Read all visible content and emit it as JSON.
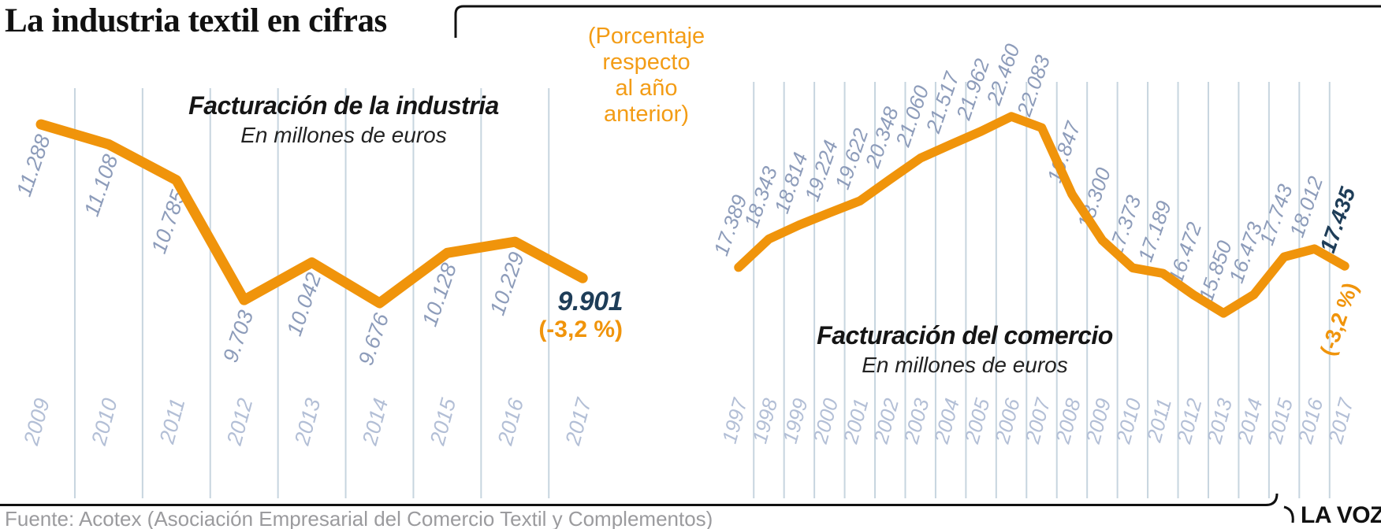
{
  "header": {
    "title": "La industria textil en cifras",
    "note": "(Porcentaje\nrespecto\nal año\nanterior)"
  },
  "footer": {
    "source": "Fuente: Acotex (Asociación Empresarial del Comercio Textil y Complementos)",
    "brand": "LA VOZ"
  },
  "colors": {
    "orange_line": "#F0940B",
    "orange_text": "#F39C15",
    "value_label_blue": "#8D9CBA",
    "year_label_blue": "#B3BFD6",
    "gridline": "#C7D5DF",
    "navy": "#1E3D58",
    "source_gray": "#9B9B9E",
    "ink": "#111111"
  },
  "chart_data": [
    {
      "type": "line",
      "title": "Facturación de la industria",
      "subtitle": "En millones de euros",
      "categories": [
        "2009",
        "2010",
        "2011",
        "2012",
        "2013",
        "2014",
        "2015",
        "2016",
        "2017"
      ],
      "values": [
        11288,
        11108,
        10785,
        9703,
        10042,
        9676,
        10128,
        10229,
        9901
      ],
      "value_labels": [
        "11.288",
        "11.108",
        "10.785",
        "9.703",
        "10.042",
        "9.676",
        "10.128",
        "10.229"
      ],
      "final_label": "9.901",
      "final_pct": "(-3,2 %)",
      "xlabel": "",
      "ylabel": "",
      "grid": "vertical-only",
      "legend": "none"
    },
    {
      "type": "line",
      "title": "Facturación del comercio",
      "subtitle": "En millones de euros",
      "categories": [
        "1997",
        "1998",
        "1999",
        "2000",
        "2001",
        "2002",
        "2003",
        "2004",
        "2005",
        "2006",
        "2007",
        "2008",
        "2009",
        "2010",
        "2011",
        "2012",
        "2013",
        "2014",
        "2015",
        "2016",
        "2017"
      ],
      "values": [
        17389,
        18343,
        18814,
        19224,
        19622,
        20348,
        21060,
        21517,
        21962,
        22460,
        22083,
        19847,
        18300,
        17373,
        17189,
        16472,
        15850,
        16473,
        17743,
        18012,
        17435
      ],
      "value_labels": [
        "17.389",
        "18.343",
        "18.814",
        "19.224",
        "19.622",
        "20.348",
        "21.060",
        "21.517",
        "21.962",
        "22.460",
        "22.083",
        "19.847",
        "18.300",
        "17.373",
        "17.189",
        "16.472",
        "15.850",
        "16.473",
        "17.743",
        "18.012"
      ],
      "final_label": "17.435",
      "final_pct": "(-3,2 %)",
      "xlabel": "",
      "ylabel": "",
      "grid": "vertical-only",
      "legend": "none"
    }
  ]
}
